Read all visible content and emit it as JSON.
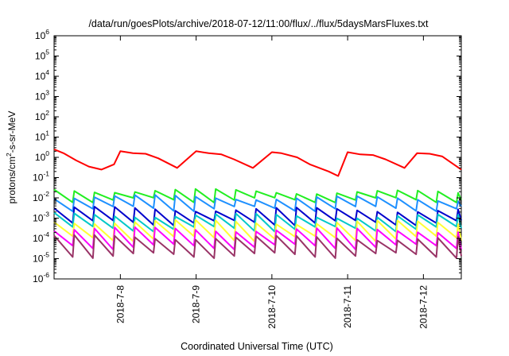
{
  "chart_data": {
    "type": "line",
    "title": "/data/run/goesPlots/archive/2018-07-12/11:00/flux/../flux/5daysMarsFluxes.txt",
    "xlabel": "Coordinated Universal Time (UTC)",
    "ylabel": {
      "base": "protons/cm",
      "sup": "2",
      "rest": "-s-sr-MeV"
    },
    "y_scale": "log",
    "ylim": [
      1e-06,
      1000000.0
    ],
    "xlim": [
      "2018-07-07 03:00",
      "2018-07-12 12:00"
    ],
    "x_tick_labels": [
      "2018-7-8",
      "2018-7-9",
      "2018-7-10",
      "2018-7-11",
      "2018-7-12"
    ],
    "y_ticks": [
      {
        "base": "10",
        "exp": "-6"
      },
      {
        "base": "10",
        "exp": "-5"
      },
      {
        "base": "10",
        "exp": "-4"
      },
      {
        "base": "10",
        "exp": "-3"
      },
      {
        "base": "10",
        "exp": "-2"
      },
      {
        "base": "10",
        "exp": "-1"
      },
      {
        "base": "10",
        "exp": "0"
      },
      {
        "base": "10",
        "exp": "1"
      },
      {
        "base": "10",
        "exp": "2"
      },
      {
        "base": "10",
        "exp": "3"
      },
      {
        "base": "10",
        "exp": "4"
      },
      {
        "base": "10",
        "exp": "5"
      },
      {
        "base": "10",
        "exp": "6"
      }
    ],
    "grid": false,
    "legend": "none",
    "series": [
      {
        "color": "#ff0000",
        "x": [
          "2018-07-07 03:00",
          "2018-07-07 06:00",
          "2018-07-07 10:00",
          "2018-07-07 14:00",
          "2018-07-07 18:00",
          "2018-07-07 22:00",
          "2018-07-08 00:00",
          "2018-07-08 04:00",
          "2018-07-08 08:00",
          "2018-07-08 12:00",
          "2018-07-08 18:00",
          "2018-07-09 00:00",
          "2018-07-09 04:00",
          "2018-07-09 08:00",
          "2018-07-09 12:00",
          "2018-07-09 18:00",
          "2018-07-10 00:00",
          "2018-07-10 03:00",
          "2018-07-10 08:00",
          "2018-07-10 12:00",
          "2018-07-10 18:00",
          "2018-07-10 21:00",
          "2018-07-11 00:00",
          "2018-07-11 04:00",
          "2018-07-11 08:00",
          "2018-07-11 12:00",
          "2018-07-11 18:00",
          "2018-07-11 22:00",
          "2018-07-12 02:00",
          "2018-07-12 06:00",
          "2018-07-12 12:00"
        ],
        "y": [
          2.5,
          1.6,
          0.7,
          0.35,
          0.25,
          0.45,
          2.0,
          1.6,
          1.5,
          0.9,
          0.3,
          2.0,
          1.6,
          1.4,
          0.8,
          0.3,
          1.8,
          1.6,
          1.0,
          0.45,
          0.2,
          0.12,
          1.8,
          1.4,
          1.3,
          0.8,
          0.3,
          1.6,
          1.5,
          1.1,
          0.25
        ]
      },
      {
        "color": "#22ee22",
        "x": [
          "2018-07-07 03:00",
          "2018-07-12 12:00"
        ],
        "y": [
          0.025,
          0.018
        ],
        "profile": "sawtooth",
        "min_y": 0.008,
        "period_hours": 6.4
      },
      {
        "color": "#1e90ff",
        "x": [
          "2018-07-07 03:00",
          "2018-07-12 12:00"
        ],
        "y": [
          0.012,
          0.009
        ],
        "profile": "sawtooth",
        "min_y": 0.003,
        "period_hours": 6.4
      },
      {
        "color": "#0000cc",
        "x": [
          "2018-07-07 03:00",
          "2018-07-12 12:00"
        ],
        "y": [
          0.003,
          0.0025
        ],
        "profile": "sawtooth",
        "min_y": 0.0006,
        "period_hours": 6.4
      },
      {
        "color": "#00c8c8",
        "x": [
          "2018-07-07 03:00",
          "2018-07-12 12:00"
        ],
        "y": [
          0.0015,
          0.0012
        ],
        "profile": "sawtooth",
        "min_y": 0.0003,
        "period_hours": 6.4
      },
      {
        "color": "#ffff33",
        "x": [
          "2018-07-07 03:00",
          "2018-07-12 12:00"
        ],
        "y": [
          0.0007,
          0.0006
        ],
        "profile": "sawtooth",
        "min_y": 0.0001,
        "period_hours": 6.4
      },
      {
        "color": "#ff00ff",
        "x": [
          "2018-07-07 03:00",
          "2018-07-12 12:00"
        ],
        "y": [
          0.0003,
          0.00025
        ],
        "profile": "sawtooth",
        "min_y": 4e-05,
        "period_hours": 6.4
      },
      {
        "color": "#993366",
        "x": [
          "2018-07-07 03:00",
          "2018-07-12 12:00"
        ],
        "y": [
          0.00012,
          0.0001
        ],
        "profile": "sawtooth",
        "min_y": 1.5e-05,
        "period_hours": 6.4
      }
    ]
  }
}
